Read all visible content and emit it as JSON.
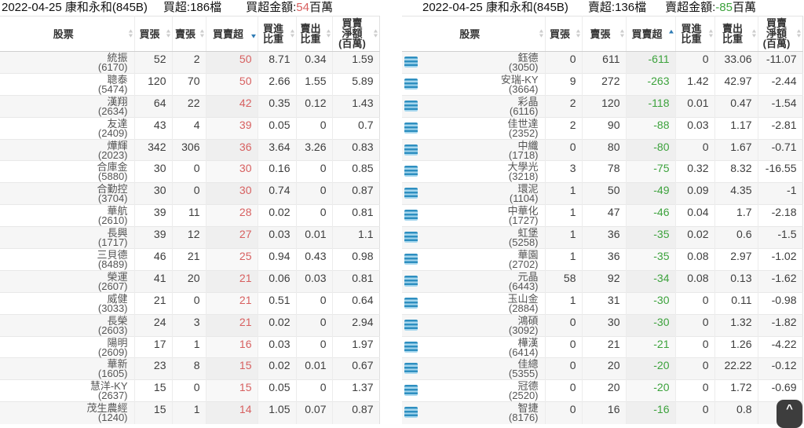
{
  "colors": {
    "buy_red": "#d75f5f",
    "sell_green": "#3ca23c",
    "sort_active_blue": "#2e7bb4",
    "icon_blue": "#2e8fc0",
    "icon_blue_light": "#a6d7ee"
  },
  "left": {
    "title": {
      "main": "2022-04-25 康和永和(845B)",
      "count": "買超:186檔",
      "amount_prefix": "買超金額:",
      "amount_value": "54",
      "amount_unit": "百萬"
    },
    "columns": [
      {
        "label": "股票",
        "sort": null
      },
      {
        "label": "買張",
        "sort": null
      },
      {
        "label": "賣張",
        "sort": null
      },
      {
        "label": "買賣超",
        "sort": "desc"
      },
      {
        "label": "買進\n比重",
        "sort": null
      },
      {
        "label": "賣出\n比重",
        "sort": null
      },
      {
        "label": "買賣\n淨額\n(百萬)",
        "sort": null
      }
    ],
    "row_icon": false,
    "rows": [
      {
        "name": "統振",
        "code": "(6170)",
        "buy": "52",
        "sell": "2",
        "net": "50",
        "buy_weight": "8.71",
        "sell_weight": "0.34",
        "net_amount": "1.59"
      },
      {
        "name": "聰泰",
        "code": "(5474)",
        "buy": "120",
        "sell": "70",
        "net": "50",
        "buy_weight": "2.66",
        "sell_weight": "1.55",
        "net_amount": "5.89"
      },
      {
        "name": "漢翔",
        "code": "(2634)",
        "buy": "64",
        "sell": "22",
        "net": "42",
        "buy_weight": "0.35",
        "sell_weight": "0.12",
        "net_amount": "1.43"
      },
      {
        "name": "友達",
        "code": "(2409)",
        "buy": "43",
        "sell": "4",
        "net": "39",
        "buy_weight": "0.05",
        "sell_weight": "0",
        "net_amount": "0.7"
      },
      {
        "name": "燁輝",
        "code": "(2023)",
        "buy": "342",
        "sell": "306",
        "net": "36",
        "buy_weight": "3.64",
        "sell_weight": "3.26",
        "net_amount": "0.83"
      },
      {
        "name": "合庫金",
        "code": "(5880)",
        "buy": "30",
        "sell": "0",
        "net": "30",
        "buy_weight": "0.16",
        "sell_weight": "0",
        "net_amount": "0.85"
      },
      {
        "name": "合勤控",
        "code": "(3704)",
        "buy": "30",
        "sell": "0",
        "net": "30",
        "buy_weight": "0.74",
        "sell_weight": "0",
        "net_amount": "0.87"
      },
      {
        "name": "華航",
        "code": "(2610)",
        "buy": "39",
        "sell": "11",
        "net": "28",
        "buy_weight": "0.02",
        "sell_weight": "0",
        "net_amount": "0.81"
      },
      {
        "name": "長興",
        "code": "(1717)",
        "buy": "39",
        "sell": "12",
        "net": "27",
        "buy_weight": "0.03",
        "sell_weight": "0.01",
        "net_amount": "1.1"
      },
      {
        "name": "三貝德",
        "code": "(8489)",
        "buy": "46",
        "sell": "21",
        "net": "25",
        "buy_weight": "0.94",
        "sell_weight": "0.43",
        "net_amount": "0.98"
      },
      {
        "name": "榮運",
        "code": "(2607)",
        "buy": "41",
        "sell": "20",
        "net": "21",
        "buy_weight": "0.06",
        "sell_weight": "0.03",
        "net_amount": "0.81"
      },
      {
        "name": "威健",
        "code": "(3033)",
        "buy": "21",
        "sell": "0",
        "net": "21",
        "buy_weight": "0.51",
        "sell_weight": "0",
        "net_amount": "0.64"
      },
      {
        "name": "長榮",
        "code": "(2603)",
        "buy": "24",
        "sell": "3",
        "net": "21",
        "buy_weight": "0.02",
        "sell_weight": "0",
        "net_amount": "2.94"
      },
      {
        "name": "陽明",
        "code": "(2609)",
        "buy": "17",
        "sell": "1",
        "net": "16",
        "buy_weight": "0.03",
        "sell_weight": "0",
        "net_amount": "1.97"
      },
      {
        "name": "華新",
        "code": "(1605)",
        "buy": "23",
        "sell": "8",
        "net": "15",
        "buy_weight": "0.02",
        "sell_weight": "0.01",
        "net_amount": "0.67"
      },
      {
        "name": "慧洋-KY",
        "code": "(2637)",
        "buy": "15",
        "sell": "0",
        "net": "15",
        "buy_weight": "0.05",
        "sell_weight": "0",
        "net_amount": "1.37"
      },
      {
        "name": "茂生農經",
        "code": "(1240)",
        "buy": "15",
        "sell": "1",
        "net": "14",
        "buy_weight": "1.05",
        "sell_weight": "0.07",
        "net_amount": "0.87"
      }
    ]
  },
  "right": {
    "title": {
      "main": "2022-04-25 康和永和(845B)",
      "count": "賣超:136檔",
      "amount_prefix": "賣超金額:",
      "amount_value": "-85",
      "amount_unit": "百萬"
    },
    "columns": [
      {
        "label": "股票",
        "sort": null
      },
      {
        "label": "買張",
        "sort": null
      },
      {
        "label": "賣張",
        "sort": null
      },
      {
        "label": "買賣超",
        "sort": "asc"
      },
      {
        "label": "買進\n比重",
        "sort": null
      },
      {
        "label": "賣出\n比重",
        "sort": null
      },
      {
        "label": "買賣\n淨額\n(百萬)",
        "sort": null
      }
    ],
    "row_icon": true,
    "rows": [
      {
        "name": "鈺德",
        "code": "(3050)",
        "buy": "0",
        "sell": "611",
        "net": "-611",
        "buy_weight": "0",
        "sell_weight": "33.06",
        "net_amount": "-11.07"
      },
      {
        "name": "安瑞-KY",
        "code": "(3664)",
        "buy": "9",
        "sell": "272",
        "net": "-263",
        "buy_weight": "1.42",
        "sell_weight": "42.97",
        "net_amount": "-2.44"
      },
      {
        "name": "彩晶",
        "code": "(6116)",
        "buy": "2",
        "sell": "120",
        "net": "-118",
        "buy_weight": "0.01",
        "sell_weight": "0.47",
        "net_amount": "-1.54"
      },
      {
        "name": "佳世達",
        "code": "(2352)",
        "buy": "2",
        "sell": "90",
        "net": "-88",
        "buy_weight": "0.03",
        "sell_weight": "1.17",
        "net_amount": "-2.81"
      },
      {
        "name": "中纖",
        "code": "(1718)",
        "buy": "0",
        "sell": "80",
        "net": "-80",
        "buy_weight": "0",
        "sell_weight": "1.67",
        "net_amount": "-0.71"
      },
      {
        "name": "大學光",
        "code": "(3218)",
        "buy": "3",
        "sell": "78",
        "net": "-75",
        "buy_weight": "0.32",
        "sell_weight": "8.32",
        "net_amount": "-16.55"
      },
      {
        "name": "環泥",
        "code": "(1104)",
        "buy": "1",
        "sell": "50",
        "net": "-49",
        "buy_weight": "0.09",
        "sell_weight": "4.35",
        "net_amount": "-1"
      },
      {
        "name": "中華化",
        "code": "(1727)",
        "buy": "1",
        "sell": "47",
        "net": "-46",
        "buy_weight": "0.04",
        "sell_weight": "1.7",
        "net_amount": "-2.18"
      },
      {
        "name": "虹堡",
        "code": "(5258)",
        "buy": "1",
        "sell": "36",
        "net": "-35",
        "buy_weight": "0.02",
        "sell_weight": "0.6",
        "net_amount": "-1.5"
      },
      {
        "name": "華園",
        "code": "(2702)",
        "buy": "1",
        "sell": "36",
        "net": "-35",
        "buy_weight": "0.08",
        "sell_weight": "2.97",
        "net_amount": "-1.02"
      },
      {
        "name": "元晶",
        "code": "(6443)",
        "buy": "58",
        "sell": "92",
        "net": "-34",
        "buy_weight": "0.08",
        "sell_weight": "0.13",
        "net_amount": "-1.62"
      },
      {
        "name": "玉山金",
        "code": "(2884)",
        "buy": "1",
        "sell": "31",
        "net": "-30",
        "buy_weight": "0",
        "sell_weight": "0.11",
        "net_amount": "-0.98"
      },
      {
        "name": "鴻碩",
        "code": "(3092)",
        "buy": "0",
        "sell": "30",
        "net": "-30",
        "buy_weight": "0",
        "sell_weight": "1.32",
        "net_amount": "-1.82"
      },
      {
        "name": "樺漢",
        "code": "(6414)",
        "buy": "0",
        "sell": "21",
        "net": "-21",
        "buy_weight": "0",
        "sell_weight": "1.26",
        "net_amount": "-4.22"
      },
      {
        "name": "佳總",
        "code": "(5355)",
        "buy": "0",
        "sell": "20",
        "net": "-20",
        "buy_weight": "0",
        "sell_weight": "22.22",
        "net_amount": "-0.12"
      },
      {
        "name": "冠德",
        "code": "(2520)",
        "buy": "0",
        "sell": "20",
        "net": "-20",
        "buy_weight": "0",
        "sell_weight": "1.72",
        "net_amount": "-0.69"
      },
      {
        "name": "智捷",
        "code": "(8176)",
        "buy": "0",
        "sell": "16",
        "net": "-16",
        "buy_weight": "0",
        "sell_weight": "0.8",
        "net_amount": "-0.4"
      }
    ]
  },
  "scroll_top": {
    "chevron": "^"
  }
}
